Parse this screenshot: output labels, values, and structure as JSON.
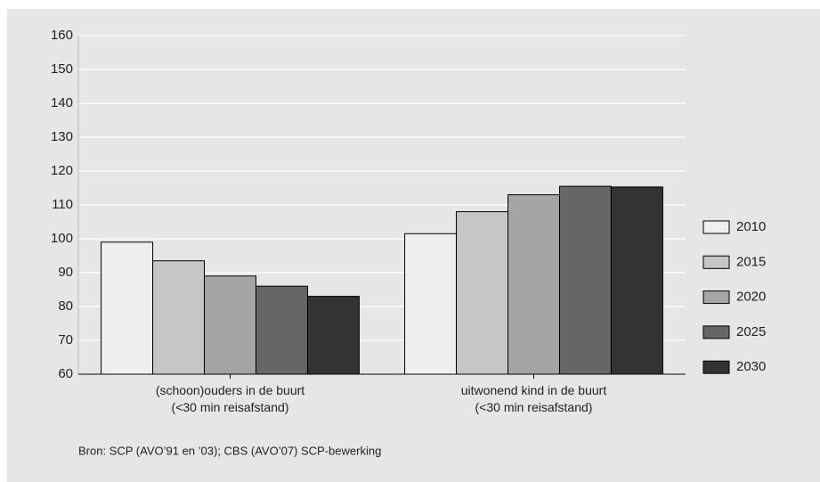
{
  "chart_data": {
    "type": "bar",
    "categories": [
      "(schoon)ouders in de buurt\n(<30 min reisafstand)",
      "uitwonend kind in de buurt\n(<30 min reisafstand)"
    ],
    "series": [
      {
        "name": "2010",
        "color": "#efefef",
        "values": [
          99,
          101.5
        ]
      },
      {
        "name": "2015",
        "color": "#c6c6c6",
        "values": [
          93.5,
          108
        ]
      },
      {
        "name": "2020",
        "color": "#a5a5a5",
        "values": [
          89,
          113
        ]
      },
      {
        "name": "2025",
        "color": "#666666",
        "values": [
          86,
          115.5
        ]
      },
      {
        "name": "2030",
        "color": "#333333",
        "values": [
          83,
          115.3
        ]
      }
    ],
    "ylim": [
      60,
      160
    ],
    "yticks": [
      60,
      70,
      80,
      90,
      100,
      110,
      120,
      130,
      140,
      150,
      160
    ],
    "grid": true,
    "legend": "right",
    "source": "Bron: SCP (AVO’91 en ’03); CBS (AVO’07) SCP-bewerking"
  }
}
